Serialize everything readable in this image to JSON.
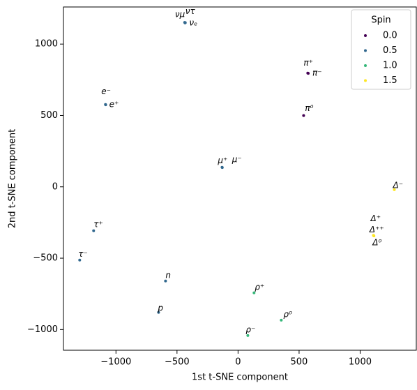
{
  "chart_data": {
    "type": "scatter",
    "x_label": "1st t-SNE component",
    "y_label": "2nd t-SNE component",
    "legend_title": "Spin",
    "legend": "upper right",
    "xlim": [
      -1430,
      1460
    ],
    "ylim": [
      -1145,
      1260
    ],
    "xticks": [
      {
        "value": -1000,
        "label": "−1000"
      },
      {
        "value": -500,
        "label": "−500"
      },
      0,
      500,
      1000
    ],
    "yticks": [
      {
        "value": -1000,
        "label": "−1000"
      },
      {
        "value": -500,
        "label": "−500"
      },
      0,
      500,
      1000
    ],
    "series": [
      {
        "name": "0.0",
        "color": "#440154",
        "x": [
          571,
          575,
          537
        ],
        "y": [
          797,
          795,
          499
        ],
        "labels": [
          "π⁺",
          "π⁻",
          "π⁰"
        ]
      },
      {
        "name": "0.5",
        "color": "#31688e",
        "x": [
          -437,
          -432,
          -434,
          -1086,
          -1084,
          -131,
          -129,
          -1183,
          -1297,
          -594,
          -651
        ],
        "y": [
          1152,
          1150,
          1148,
          577,
          575,
          137,
          135,
          -308,
          -513,
          -660,
          -880
        ],
        "labels": [
          "νμ",
          "ντ",
          "νₑ",
          "e⁻",
          "e⁺",
          "μ⁺",
          "μ⁻",
          "τ⁺",
          "τ⁻",
          "n",
          "p"
        ]
      },
      {
        "name": "1.0",
        "color": "#35b779",
        "x": [
          131,
          354,
          80
        ],
        "y": [
          -743,
          -934,
          -1042
        ],
        "labels": [
          "ρ⁺",
          "ρ⁰",
          "ρ⁻"
        ]
      },
      {
        "name": "1.5",
        "color": "#fde725",
        "x": [
          1280,
          1109,
          1111,
          1113
        ],
        "y": [
          -20,
          -340,
          -342,
          -344
        ],
        "labels": [
          "Δ⁻",
          "Δ⁺",
          "Δ⁺⁺",
          "Δ⁰"
        ]
      }
    ]
  }
}
